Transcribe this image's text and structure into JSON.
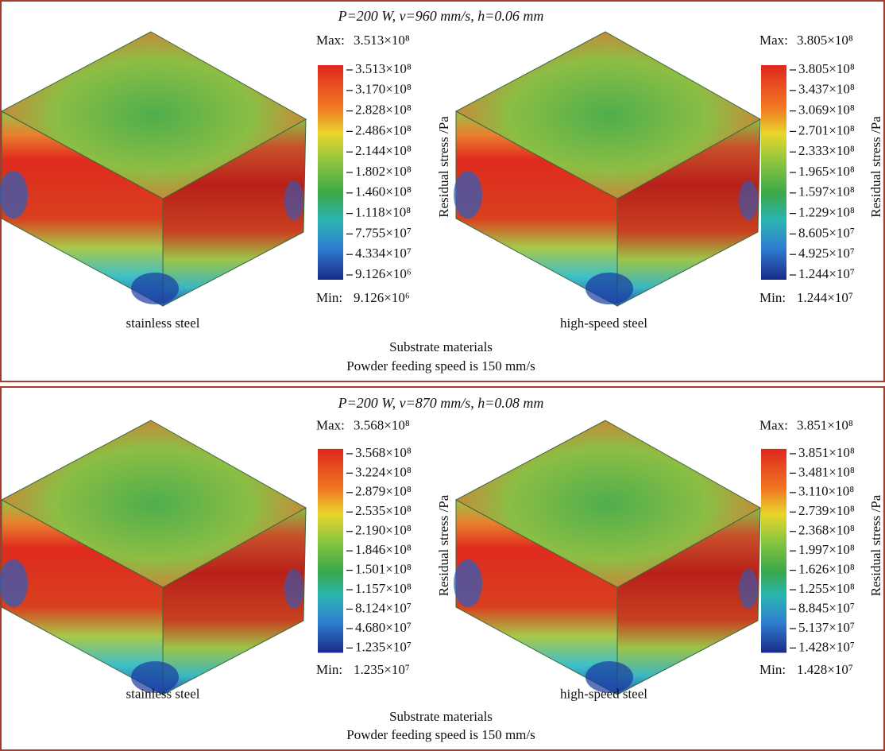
{
  "panels": [
    {
      "title": "P=200 W, v=960 mm/s, h=0.06 mm",
      "plots": [
        {
          "max_label": "Max:",
          "max": "3.513×10⁸",
          "ticks": [
            "3.513×10⁸",
            "3.170×10⁸",
            "2.828×10⁸",
            "2.486×10⁸",
            "2.144×10⁸",
            "1.802×10⁸",
            "1.460×10⁸",
            "1.118×10⁸",
            "7.755×10⁷",
            "4.334×10⁷",
            "9.126×10⁶"
          ],
          "min_label": "Min:",
          "min": "9.126×10⁶",
          "axis_label": "Residual stress /Pa",
          "material": "stainless steel"
        },
        {
          "max_label": "Max:",
          "max": "3.805×10⁸",
          "ticks": [
            "3.805×10⁸",
            "3.437×10⁸",
            "3.069×10⁸",
            "2.701×10⁸",
            "2.333×10⁸",
            "1.965×10⁸",
            "1.597×10⁸",
            "1.229×10⁸",
            "8.605×10⁷",
            "4.925×10⁷",
            "1.244×10⁷"
          ],
          "min_label": "Min:",
          "min": "1.244×10⁷",
          "axis_label": "Residual stress /Pa",
          "material": "high-speed steel"
        }
      ],
      "xlabel": "Substrate materials",
      "note": "Powder feeding speed is 150 mm/s"
    },
    {
      "title": "P=200 W, v=870 mm/s, h=0.08 mm",
      "plots": [
        {
          "max_label": "Max:",
          "max": "3.568×10⁸",
          "ticks": [
            "3.568×10⁸",
            "3.224×10⁸",
            "2.879×10⁸",
            "2.535×10⁸",
            "2.190×10⁸",
            "1.846×10⁸",
            "1.501×10⁸",
            "1.157×10⁸",
            "8.124×10⁷",
            "4.680×10⁷",
            "1.235×10⁷"
          ],
          "min_label": "Min:",
          "min": "1.235×10⁷",
          "axis_label": "Residual stress /Pa",
          "material": "stainless steel"
        },
        {
          "max_label": "Max:",
          "max": "3.851×10⁸",
          "ticks": [
            "3.851×10⁸",
            "3.481×10⁸",
            "3.110×10⁸",
            "2.739×10⁸",
            "2.368×10⁸",
            "1.997×10⁸",
            "1.626×10⁸",
            "1.255×10⁸",
            "8.845×10⁷",
            "5.137×10⁷",
            "1.428×10⁷"
          ],
          "min_label": "Min:",
          "min": "1.428×10⁷",
          "axis_label": "Residual stress /Pa",
          "material": "high-speed steel"
        }
      ],
      "xlabel": "Substrate materials",
      "note": "Powder feeding speed is 150 mm/s"
    }
  ]
}
